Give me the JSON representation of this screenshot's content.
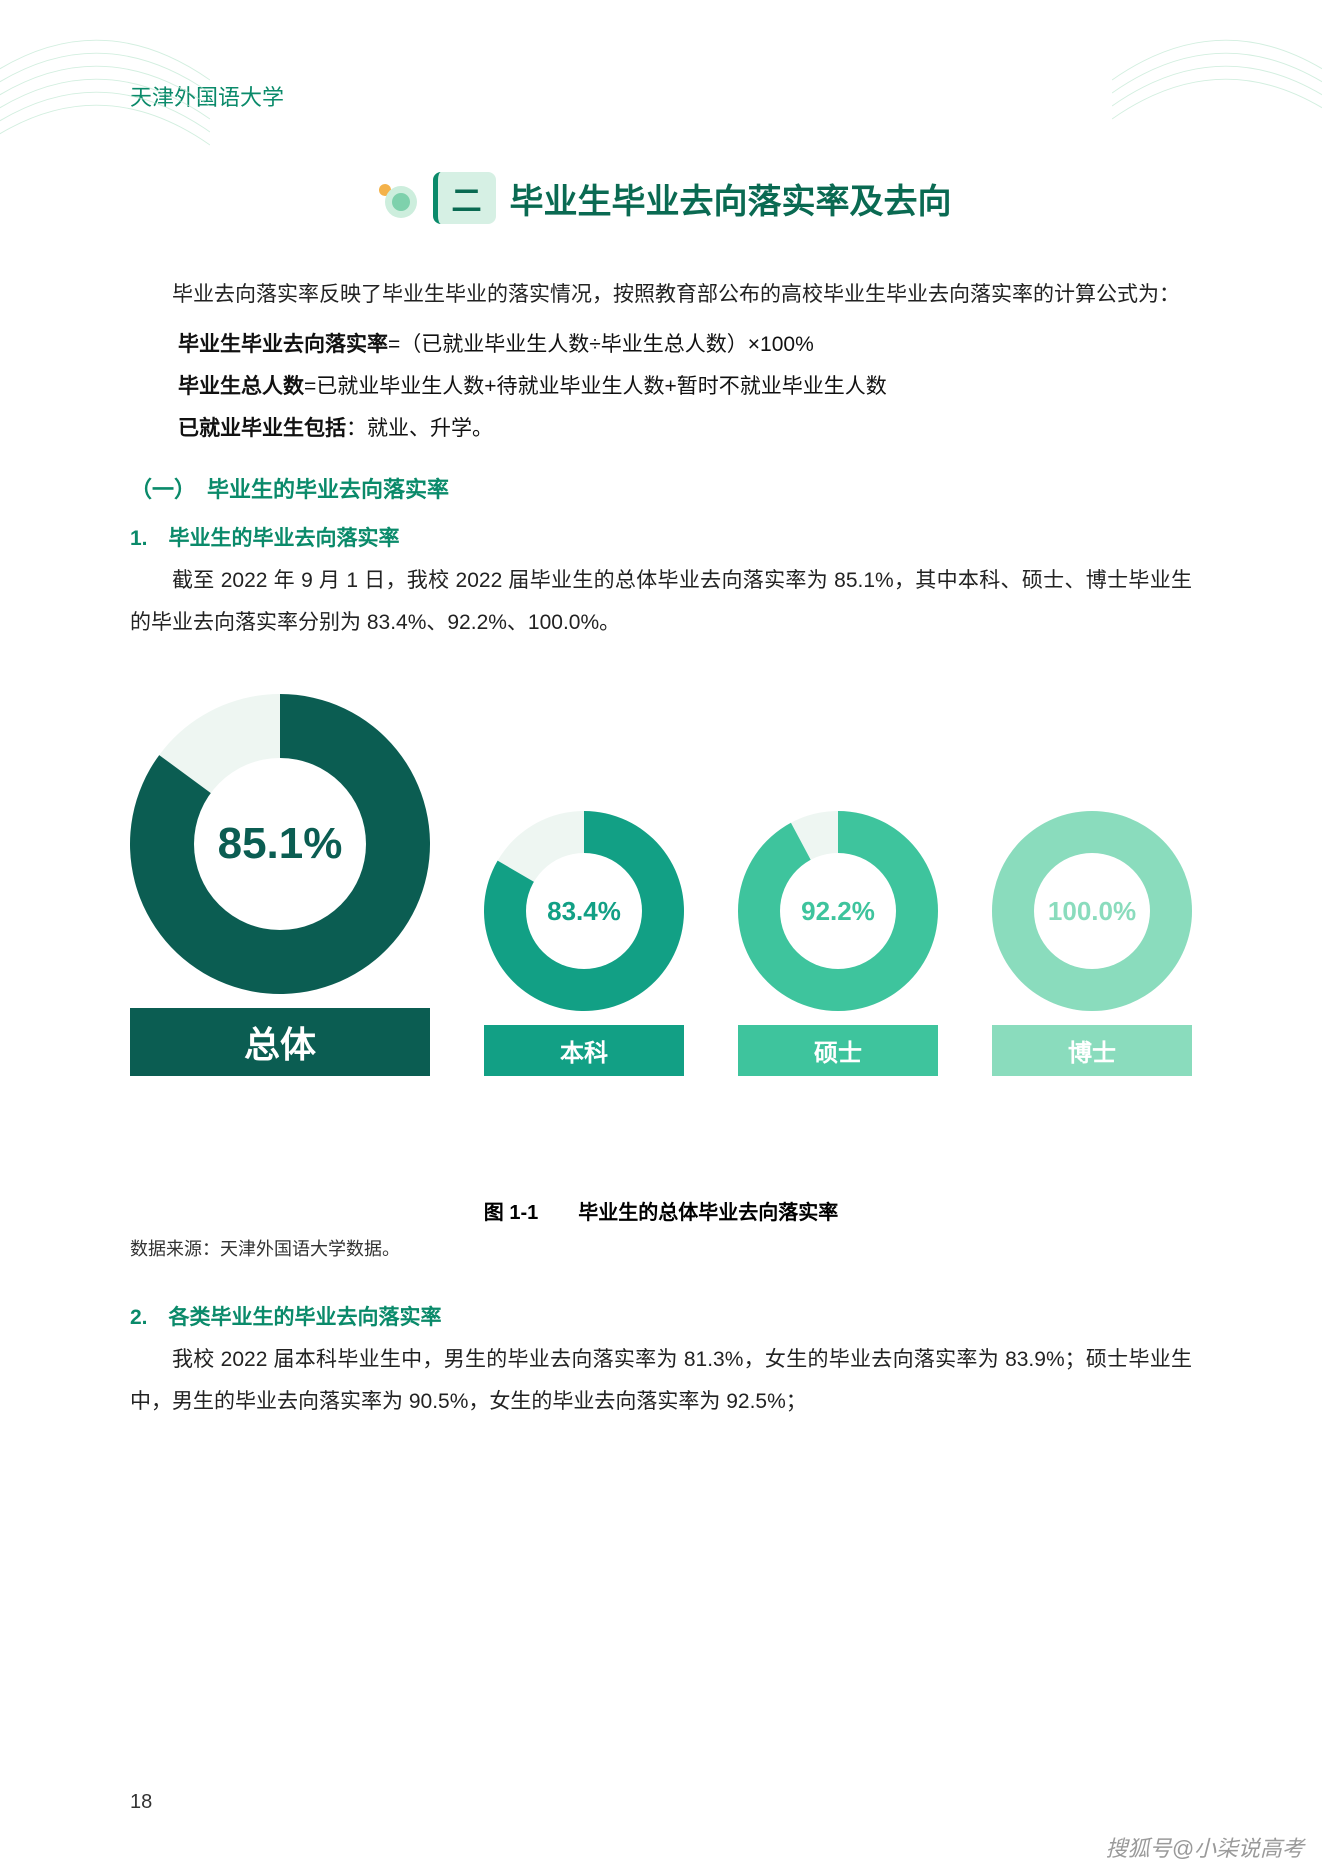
{
  "header": {
    "university": "天津外国语大学"
  },
  "section": {
    "number": "二",
    "title": "毕业生毕业去向落实率及去向"
  },
  "intro": "毕业去向落实率反映了毕业生毕业的落实情况，按照教育部公布的高校毕业生毕业去向落实率的计算公式为：",
  "formulas": {
    "f1_label": "毕业生毕业去向落实率",
    "f1_expr": "=（已就业毕业生人数÷毕业生总人数）×100%",
    "f2_label": "毕业生总人数",
    "f2_expr": "=已就业毕业生人数+待就业毕业生人数+暂时不就业毕业生人数",
    "f3_label": "已就业毕业生包括",
    "f3_expr": "：就业、升学。"
  },
  "sub1": "（一）　毕业生的毕业去向落实率",
  "item1": {
    "num": "1.",
    "title": "毕业生的毕业去向落实率",
    "para": "截至 2022 年 9 月 1 日，我校 2022 届毕业生的总体毕业去向落实率为 85.1%，其中本科、硕士、博士毕业生的毕业去向落实率分别为 83.4%、92.2%、100.0%。"
  },
  "donut_chart": {
    "type": "donut-group",
    "background": "#ffffff",
    "items": [
      {
        "key": "total",
        "label": "总体",
        "value": 85.1,
        "display": "85.1%",
        "size": 300,
        "thickness": 64,
        "color": "#0b5d52",
        "label_bg": "#0b5d52",
        "label_width": 300,
        "label_font": 36,
        "center_font": 44
      },
      {
        "key": "bachelor",
        "label": "本科",
        "value": 83.4,
        "display": "83.4%",
        "size": 200,
        "thickness": 42,
        "color": "#12a085",
        "label_bg": "#12a085",
        "label_width": 200,
        "label_font": 24,
        "center_font": 26
      },
      {
        "key": "master",
        "label": "硕士",
        "value": 92.2,
        "display": "92.2%",
        "size": 200,
        "thickness": 42,
        "color": "#3ec49d",
        "label_bg": "#3ec49d",
        "label_width": 200,
        "label_font": 24,
        "center_font": 26
      },
      {
        "key": "doctor",
        "label": "博士",
        "value": 100.0,
        "display": "100.0%",
        "size": 200,
        "thickness": 42,
        "color": "#8adcbd",
        "label_bg": "#8adcbd",
        "label_width": 200,
        "label_font": 24,
        "center_font": 26
      }
    ],
    "empty_color": "#ffffff",
    "ring_bg": "#eef6f2"
  },
  "figure_caption": "图 1-1　　毕业生的总体毕业去向落实率",
  "data_source": "数据来源：天津外国语大学数据。",
  "item2": {
    "num": "2.",
    "title": "各类毕业生的毕业去向落实率",
    "para": "我校 2022 届本科毕业生中，男生的毕业去向落实率为 81.3%，女生的毕业去向落实率为 83.9%；硕士毕业生中，男生的毕业去向落实率为 90.5%，女生的毕业去向落实率为 92.5%；"
  },
  "page_number": "18",
  "watermark": "搜狐号@小柒说高考",
  "colors": {
    "brand": "#0a8a6a",
    "text": "#222222"
  }
}
